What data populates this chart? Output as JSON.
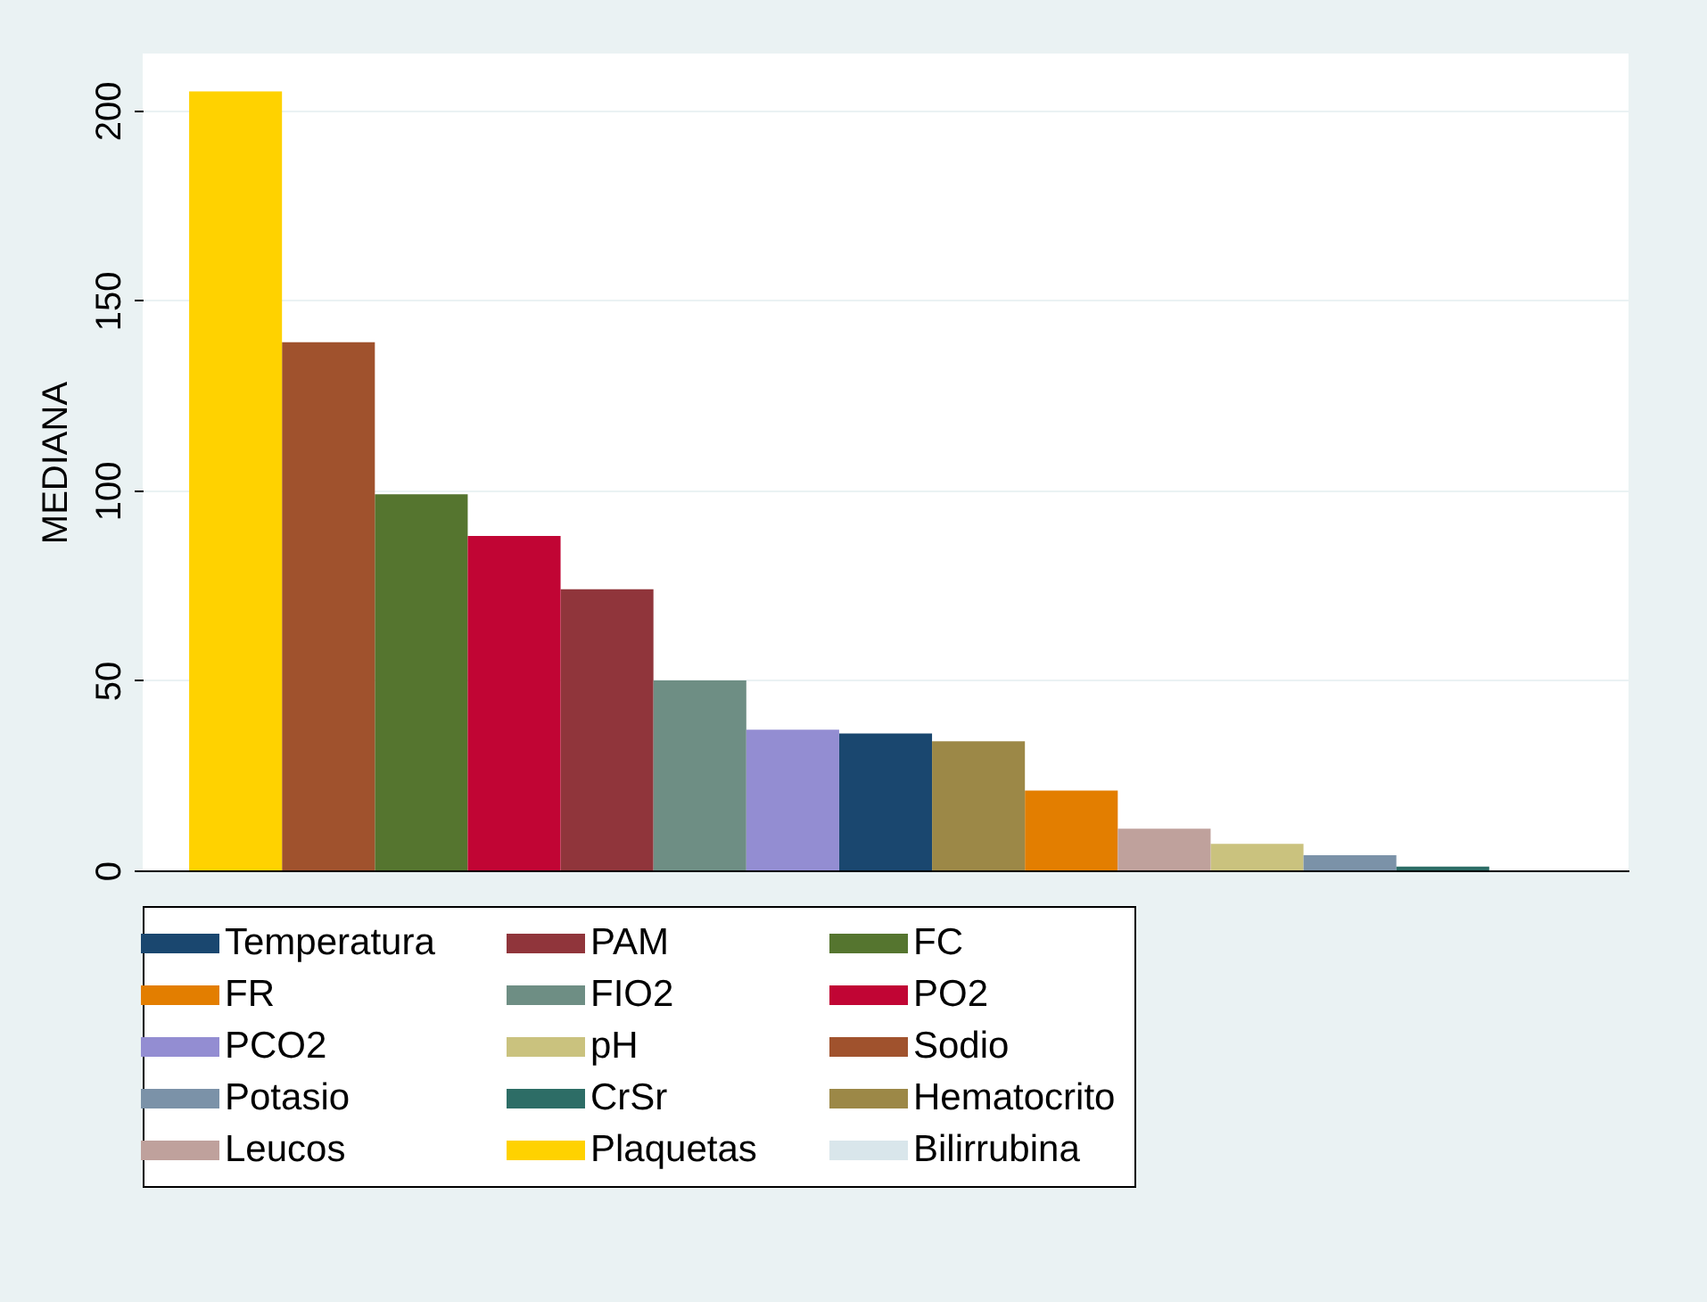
{
  "chart_data": {
    "type": "bar",
    "ylabel": "MEDIANA",
    "categories": [
      null,
      null,
      null,
      null,
      null,
      null,
      null,
      null,
      null,
      null,
      null,
      null,
      null,
      null,
      null
    ],
    "series": [
      {
        "name": "Temperatura",
        "color": "#1a476f",
        "values": [
          null,
          null,
          null,
          null,
          null,
          null,
          null,
          36,
          null,
          null,
          null,
          null,
          null,
          null,
          null
        ]
      },
      {
        "name": "PAM",
        "color": "#90353b",
        "values": [
          null,
          null,
          null,
          null,
          74,
          null,
          null,
          null,
          null,
          null,
          null,
          null,
          null,
          null,
          null
        ]
      },
      {
        "name": "FC",
        "color": "#55752f",
        "values": [
          null,
          null,
          99,
          null,
          null,
          null,
          null,
          null,
          null,
          null,
          null,
          null,
          null,
          null,
          null
        ]
      },
      {
        "name": "FR",
        "color": "#e37e00",
        "values": [
          null,
          null,
          null,
          null,
          null,
          null,
          null,
          null,
          null,
          21,
          null,
          null,
          null,
          null,
          null
        ]
      },
      {
        "name": "FIO2",
        "color": "#6e8e84",
        "values": [
          null,
          null,
          null,
          null,
          null,
          50,
          null,
          null,
          null,
          null,
          null,
          null,
          null,
          null,
          null
        ]
      },
      {
        "name": "PO2",
        "color": "#c10534",
        "values": [
          null,
          null,
          null,
          88,
          null,
          null,
          null,
          null,
          null,
          null,
          null,
          null,
          null,
          null,
          null
        ]
      },
      {
        "name": "PCO2",
        "color": "#938dd2",
        "values": [
          null,
          null,
          null,
          null,
          null,
          null,
          37,
          null,
          null,
          null,
          null,
          null,
          null,
          null,
          null
        ]
      },
      {
        "name": "pH",
        "color": "#cac27e",
        "values": [
          null,
          null,
          null,
          null,
          null,
          null,
          null,
          null,
          null,
          null,
          null,
          7,
          null,
          null,
          null
        ]
      },
      {
        "name": "Sodio",
        "color": "#a0522d",
        "values": [
          null,
          139,
          null,
          null,
          null,
          null,
          null,
          null,
          null,
          null,
          null,
          null,
          null,
          null,
          null
        ]
      },
      {
        "name": "Potasio",
        "color": "#7b92a8",
        "values": [
          null,
          null,
          null,
          null,
          null,
          null,
          null,
          null,
          null,
          null,
          null,
          null,
          4,
          null,
          null
        ]
      },
      {
        "name": "CrSr",
        "color": "#2d6d66",
        "values": [
          null,
          null,
          null,
          null,
          null,
          null,
          null,
          null,
          null,
          null,
          null,
          null,
          null,
          1,
          null
        ]
      },
      {
        "name": "Hematocrito",
        "color": "#9c8847",
        "values": [
          null,
          null,
          null,
          null,
          null,
          null,
          null,
          null,
          34,
          null,
          null,
          null,
          null,
          null,
          null
        ]
      },
      {
        "name": "Leucos",
        "color": "#bfa19c",
        "values": [
          null,
          null,
          null,
          null,
          null,
          null,
          null,
          null,
          null,
          null,
          11,
          null,
          null,
          null,
          null
        ]
      },
      {
        "name": "Plaquetas",
        "color": "#ffd200",
        "values": [
          205,
          null,
          null,
          null,
          null,
          null,
          null,
          null,
          null,
          null,
          null,
          null,
          null,
          null,
          null
        ]
      },
      {
        "name": "Bilirrubina",
        "color": "#d9e6eb",
        "values": [
          null,
          null,
          null,
          null,
          null,
          null,
          null,
          null,
          null,
          null,
          null,
          null,
          null,
          null,
          null
        ]
      }
    ],
    "ylim": [
      0,
      215
    ],
    "yticks": [
      0,
      50,
      100,
      150,
      200
    ],
    "grid": "y",
    "legend": "bottom"
  }
}
